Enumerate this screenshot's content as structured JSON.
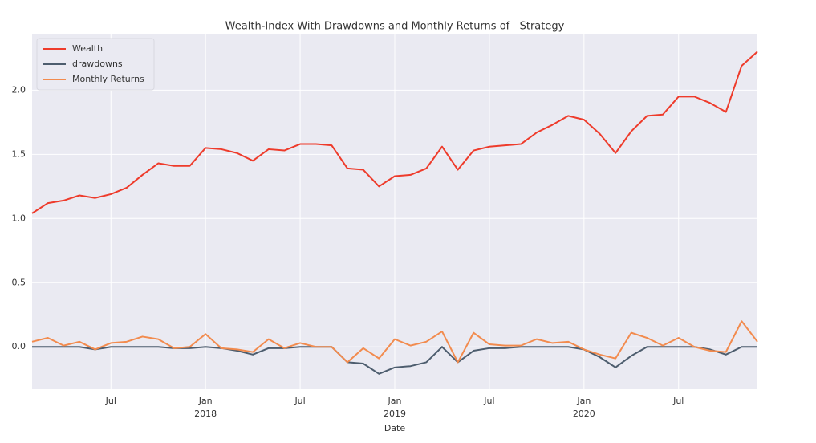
{
  "chart_data": {
    "type": "line",
    "title": "Wealth-Index With Drawdowns and Monthly Returns of   Strategy",
    "xlabel": "Date",
    "x": [
      "2017-02",
      "2017-03",
      "2017-04",
      "2017-05",
      "2017-06",
      "2017-07",
      "2017-08",
      "2017-09",
      "2017-10",
      "2017-11",
      "2017-12",
      "2018-01",
      "2018-02",
      "2018-03",
      "2018-04",
      "2018-05",
      "2018-06",
      "2018-07",
      "2018-08",
      "2018-09",
      "2018-10",
      "2018-11",
      "2018-12",
      "2019-01",
      "2019-02",
      "2019-03",
      "2019-04",
      "2019-05",
      "2019-06",
      "2019-07",
      "2019-08",
      "2019-09",
      "2019-10",
      "2019-11",
      "2019-12",
      "2020-01",
      "2020-02",
      "2020-03",
      "2020-04",
      "2020-05",
      "2020-06",
      "2020-07",
      "2020-08",
      "2020-09",
      "2020-10",
      "2020-11",
      "2020-12"
    ],
    "series": [
      {
        "name": "Wealth",
        "color": "#ee3b2b",
        "values": [
          1.04,
          1.12,
          1.14,
          1.18,
          1.16,
          1.19,
          1.24,
          1.34,
          1.43,
          1.41,
          1.41,
          1.55,
          1.54,
          1.51,
          1.45,
          1.54,
          1.53,
          1.58,
          1.58,
          1.57,
          1.39,
          1.38,
          1.25,
          1.33,
          1.34,
          1.39,
          1.56,
          1.38,
          1.53,
          1.56,
          1.57,
          1.58,
          1.67,
          1.73,
          1.8,
          1.77,
          1.66,
          1.51,
          1.68,
          1.8,
          1.81,
          1.95,
          1.95,
          1.9,
          1.83,
          2.19,
          2.3
        ]
      },
      {
        "name": "drawdowns",
        "color": "#4d5d6e",
        "values": [
          0,
          0,
          0,
          0,
          -0.02,
          0,
          0,
          0,
          0,
          -0.01,
          -0.01,
          0,
          -0.01,
          -0.03,
          -0.06,
          -0.01,
          -0.01,
          0,
          0,
          0,
          -0.12,
          -0.13,
          -0.21,
          -0.16,
          -0.15,
          -0.12,
          0,
          -0.12,
          -0.03,
          -0.01,
          -0.01,
          0,
          0,
          0,
          0,
          -0.02,
          -0.08,
          -0.16,
          -0.07,
          0,
          0,
          0,
          0,
          -0.02,
          -0.06,
          0,
          0
        ]
      },
      {
        "name": "Monthly Returns",
        "color": "#f28b4e",
        "values": [
          0.04,
          0.07,
          0.01,
          0.04,
          -0.02,
          0.03,
          0.04,
          0.08,
          0.06,
          -0.01,
          0,
          0.1,
          -0.01,
          -0.02,
          -0.04,
          0.06,
          -0.01,
          0.03,
          0,
          0,
          -0.12,
          -0.01,
          -0.09,
          0.06,
          0.01,
          0.04,
          0.12,
          -0.12,
          0.11,
          0.02,
          0.01,
          0.01,
          0.06,
          0.03,
          0.04,
          -0.02,
          -0.06,
          -0.09,
          0.11,
          0.07,
          0.01,
          0.07,
          0,
          -0.03,
          -0.04,
          0.2,
          0.04
        ]
      }
    ],
    "xlim": [
      "2017-02",
      "2020-12"
    ],
    "xticks": [
      {
        "value": "2017-07",
        "label": "Jul"
      },
      {
        "value": "2018-01",
        "label": "Jan",
        "year": "2018"
      },
      {
        "value": "2018-07",
        "label": "Jul"
      },
      {
        "value": "2019-01",
        "label": "Jan",
        "year": "2019"
      },
      {
        "value": "2019-07",
        "label": "Jul"
      },
      {
        "value": "2020-01",
        "label": "Jan",
        "year": "2020"
      },
      {
        "value": "2020-07",
        "label": "Jul"
      }
    ],
    "ylim": [
      -0.33,
      2.44
    ],
    "yticks": [
      {
        "value": 0,
        "label": "0.0"
      },
      {
        "value": 0.5,
        "label": "0.5"
      },
      {
        "value": 1,
        "label": "1.0"
      },
      {
        "value": 1.5,
        "label": "1.5"
      },
      {
        "value": 2,
        "label": "2.0"
      }
    ],
    "grid": true,
    "legend": "upper-left"
  }
}
